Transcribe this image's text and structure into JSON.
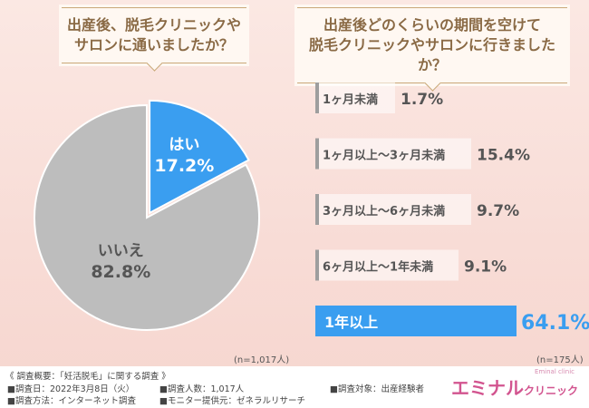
{
  "left_title": "出産後、脱毛クリニックや\nサロンに通いましたか？",
  "right_title": "出産後どのくらいの期間を空けて\n脱毛クリニックやサロンに行きましたか？",
  "colors": {
    "yes": "#3a9ef0",
    "no": "#bdbdbd",
    "bar": "#9e9e9e",
    "bar_highlight": "#3a9ef0",
    "brand": "#d2548f"
  },
  "chart_data": [
    {
      "type": "pie",
      "categories": [
        "はい",
        "いいえ"
      ],
      "values": [
        17.2,
        82.8
      ],
      "value_labels": [
        "17.2%",
        "82.8%"
      ],
      "note": "(n=1,017人)"
    },
    {
      "type": "bar",
      "orientation": "horizontal",
      "categories": [
        "1ヶ月未満",
        "1ヶ月以上～3ヶ月未満",
        "3ヶ月以上～6ヶ月未満",
        "6ヶ月以上～1年未満",
        "1年以上"
      ],
      "values": [
        1.7,
        15.4,
        9.7,
        9.1,
        64.1
      ],
      "value_labels": [
        "1.7%",
        "15.4%",
        "9.7%",
        "9.1%",
        "64.1%"
      ],
      "note": "(n=175人)"
    }
  ],
  "footer": {
    "heading": "《 調査概要：「妊活脱毛」に関する調査 》",
    "date": "■調査日：2022年3月8日（火）",
    "method": "■調査方法：インターネット調査",
    "count": "■調査人数：1,017人",
    "provider": "■モニター提供元：ゼネラルリサーチ",
    "target": "■調査対象：出産経験者"
  },
  "brand": {
    "name": "エミナル",
    "suffix": "クリニック",
    "sub": "Eminal clinic"
  }
}
